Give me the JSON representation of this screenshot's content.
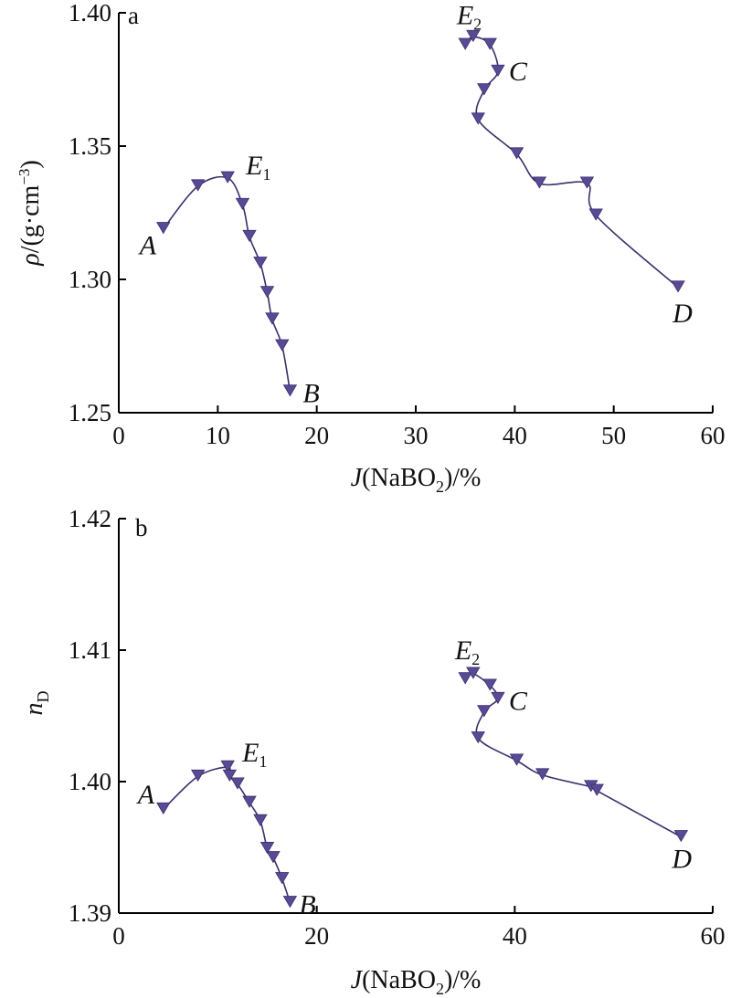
{
  "chart_data": [
    {
      "type": "line",
      "panel_label": "a",
      "ylabel_parts": [
        "ρ",
        "/(g·cm",
        "−3",
        ")"
      ],
      "xlabel_parts": [
        "J",
        "(NaBO",
        "2",
        ")/%"
      ],
      "xlim": [
        0,
        60
      ],
      "ylim": [
        1.25,
        1.4
      ],
      "xticks": [
        "0",
        "10",
        "20",
        "30",
        "40",
        "50",
        "60"
      ],
      "yticks": [
        "1.25",
        "1.30",
        "1.35",
        "1.40"
      ],
      "grid": false,
      "series": [
        {
          "x": [
            4.5,
            8.0,
            11.0,
            12.5,
            13.2,
            14.3,
            15.0,
            15.5,
            16.5,
            17.3
          ],
          "y": [
            1.319,
            1.335,
            1.338,
            1.328,
            1.316,
            1.306,
            1.295,
            1.285,
            1.275,
            1.258
          ]
        },
        {
          "x": [
            35.0,
            35.8,
            37.5,
            38.3,
            36.9,
            36.3,
            40.2,
            42.5,
            47.3,
            48.2,
            56.5
          ],
          "y": [
            1.388,
            1.391,
            1.388,
            1.378,
            1.371,
            1.36,
            1.347,
            1.336,
            1.336,
            1.324,
            1.297
          ]
        }
      ],
      "annotations": [
        {
          "label": "A",
          "sub": "",
          "x": 4.5,
          "y": 1.319
        },
        {
          "label": "E",
          "sub": "1",
          "x": 11.0,
          "y": 1.338
        },
        {
          "label": "B",
          "sub": "",
          "x": 17.3,
          "y": 1.258
        },
        {
          "label": "E",
          "sub": "2",
          "x": 35.8,
          "y": 1.391
        },
        {
          "label": "C",
          "sub": "",
          "x": 38.3,
          "y": 1.378
        },
        {
          "label": "D",
          "sub": "",
          "x": 56.5,
          "y": 1.297
        }
      ]
    },
    {
      "type": "line",
      "panel_label": "b",
      "ylabel_parts": [
        "n",
        "D"
      ],
      "xlabel_parts": [
        "J",
        "(NaBO",
        "2",
        ")/%"
      ],
      "xlim": [
        0,
        60
      ],
      "ylim": [
        1.39,
        1.42
      ],
      "xticks": [
        "0",
        "20",
        "40",
        "60"
      ],
      "yticks": [
        "1.39",
        "1.40",
        "1.41",
        "1.42"
      ],
      "grid": false,
      "series": [
        {
          "x": [
            4.5,
            8.0,
            11.0,
            11.2,
            12.0,
            13.2,
            14.3,
            15.0,
            15.6,
            16.5,
            17.3
          ],
          "y": [
            1.3979,
            1.4004,
            1.4011,
            1.4004,
            1.3998,
            1.3984,
            1.397,
            1.3949,
            1.3942,
            1.3926,
            1.3908
          ]
        },
        {
          "x": [
            35.0,
            35.8,
            37.5,
            38.3,
            36.9,
            36.3,
            40.2,
            42.8,
            47.7,
            48.3,
            56.8
          ],
          "y": [
            1.4078,
            1.4082,
            1.4073,
            1.4063,
            1.4053,
            1.4033,
            1.4016,
            1.4005,
            1.3996,
            1.3993,
            1.3958
          ]
        }
      ],
      "annotations": [
        {
          "label": "A",
          "sub": "",
          "x": 4.5,
          "y": 1.3979
        },
        {
          "label": "E",
          "sub": "1",
          "x": 11.0,
          "y": 1.4011
        },
        {
          "label": "B",
          "sub": "",
          "x": 17.3,
          "y": 1.3908
        },
        {
          "label": "E",
          "sub": "2",
          "x": 35.8,
          "y": 1.4082
        },
        {
          "label": "C",
          "sub": "",
          "x": 38.3,
          "y": 1.4063
        },
        {
          "label": "D",
          "sub": "",
          "x": 56.8,
          "y": 1.3958
        }
      ]
    }
  ]
}
